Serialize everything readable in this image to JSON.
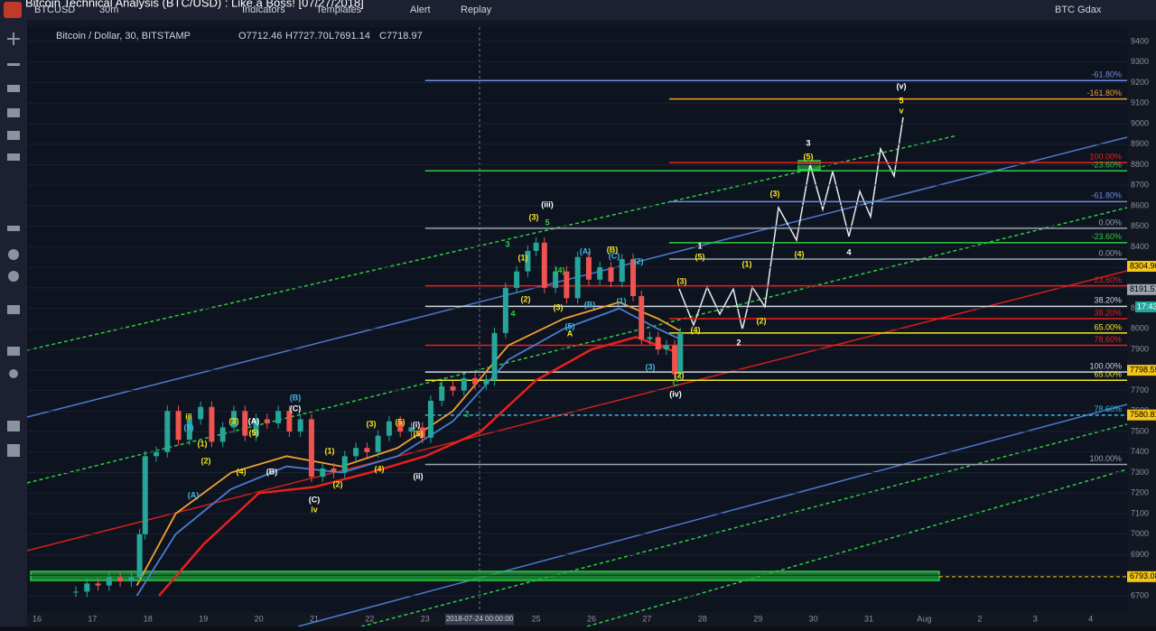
{
  "window_title": "Bitcoin Technical Analysis (BTC/USD) : Like a Boss! [07/27/2018]",
  "toolbar": {
    "symbol": "BTCUSD",
    "interval": "30m",
    "indicators": "Indicators",
    "templates": "Templates",
    "alert": "Alert",
    "replay": "Replay",
    "exchange": "BTC Gdax"
  },
  "legend": {
    "name": "Bitcoin / Dollar, 30, BITSTAMP",
    "open": "O7712.46",
    "high": "H7727.70",
    "low": "L7691.14",
    "close": "C7718.97"
  },
  "price_axis": {
    "ticks": [
      9400,
      9300,
      9200,
      9100,
      9000,
      8900,
      8800,
      8700,
      8600,
      8500,
      8400,
      8300,
      8200,
      8100,
      8000,
      7900,
      7800,
      7700,
      7600,
      7500,
      7400,
      7300,
      7200,
      7100,
      7000,
      6900,
      6800,
      6700
    ],
    "markers": [
      {
        "value": 8304.9,
        "label": "8304.90",
        "color": "#f5c518"
      },
      {
        "value": 8191.51,
        "label": "8191.51",
        "color": "#9aa4ad"
      },
      {
        "value": 7798.59,
        "label": "7798.59",
        "color": "#f5c518"
      },
      {
        "value": 7580.81,
        "label": "7580.81",
        "color": "#f5c518"
      },
      {
        "value": 6793.08,
        "label": "6793.08",
        "color": "#f5c518"
      }
    ],
    "countdown": "17:43"
  },
  "time_axis": {
    "ticks": [
      "16",
      "17",
      "18",
      "19",
      "20",
      "21",
      "22",
      "23",
      "24",
      "25",
      "26",
      "27",
      "28",
      "29",
      "30",
      "31",
      "Aug",
      "2",
      "3",
      "4"
    ],
    "cursor_label": "2018-07-24 00:00:00"
  },
  "price_series": {
    "x": [
      16.7,
      16.9,
      17.1,
      17.3,
      17.5,
      17.7,
      17.85,
      17.95,
      18.15,
      18.35,
      18.55,
      18.75,
      18.95,
      19.15,
      19.35,
      19.55,
      19.75,
      19.95,
      20.15,
      20.35,
      20.55,
      20.75,
      20.95,
      21.15,
      21.35,
      21.55,
      21.75,
      21.95,
      22.15,
      22.35,
      22.55,
      22.75,
      22.95,
      23.1,
      23.3,
      23.5,
      23.7,
      23.9,
      24.1,
      24.25,
      24.45,
      24.65,
      24.85,
      25.0,
      25.15,
      25.35,
      25.55,
      25.75,
      25.95,
      26.15,
      26.35,
      26.55,
      26.75,
      26.9,
      27.05,
      27.2,
      27.35,
      27.5,
      27.6
    ],
    "values": [
      6720,
      6760,
      6750,
      6790,
      6770,
      6790,
      7000,
      7380,
      7400,
      7600,
      7460,
      7560,
      7620,
      7450,
      7520,
      7600,
      7480,
      7560,
      7540,
      7600,
      7500,
      7560,
      7280,
      7320,
      7300,
      7380,
      7420,
      7400,
      7480,
      7550,
      7500,
      7520,
      7470,
      7650,
      7720,
      7700,
      7760,
      7730,
      7750,
      7980,
      8200,
      8280,
      8380,
      8420,
      8200,
      8280,
      8150,
      8350,
      8240,
      8300,
      8230,
      8340,
      8160,
      7950,
      7960,
      7900,
      7920,
      7780,
      7980
    ]
  },
  "moving_averages": [
    {
      "color": "#4a7bd0",
      "x": [
        17.8,
        18.5,
        19.5,
        20.5,
        21.5,
        22.5,
        23.5,
        24.5,
        25.5,
        26.5,
        27.2,
        27.6
      ],
      "values": [
        6700,
        7000,
        7220,
        7330,
        7300,
        7380,
        7550,
        7850,
        8000,
        8100,
        8000,
        7950
      ]
    },
    {
      "color": "#f0a030",
      "x": [
        17.8,
        18.5,
        19.5,
        20.5,
        21.5,
        22.5,
        23.5,
        24.5,
        25.5,
        26.5,
        27.2,
        27.6
      ],
      "values": [
        6750,
        7100,
        7300,
        7380,
        7330,
        7420,
        7600,
        7920,
        8050,
        8130,
        8050,
        7990
      ]
    },
    {
      "color": "#e8201c",
      "x": [
        18.2,
        19,
        20,
        21,
        22,
        23,
        24,
        25,
        26,
        26.8,
        27.6
      ],
      "values": [
        6700,
        6950,
        7200,
        7230,
        7300,
        7380,
        7500,
        7750,
        7900,
        7960,
        7880
      ]
    }
  ],
  "levels": [
    {
      "value": 9210,
      "label": "-61.80%",
      "color": "#6b8fe0",
      "start": 23
    },
    {
      "value": 9120,
      "label": "-161.80%",
      "color": "#f0a030",
      "start": 27.4
    },
    {
      "value": 8810,
      "label": "100.00%",
      "color": "#e8201c",
      "start": 27.4
    },
    {
      "value": 8770,
      "label": "-23.60%",
      "color": "#2ecc40",
      "start": 23
    },
    {
      "value": 8620,
      "label": "-61.80%",
      "color": "#6b8fe0",
      "start": 27.4
    },
    {
      "value": 8490,
      "label": "0.00%",
      "color": "#9aa4ad",
      "start": 23
    },
    {
      "value": 8420,
      "label": "-23.60%",
      "color": "#2ecc40",
      "start": 27.4
    },
    {
      "value": 8340,
      "label": "0.00%",
      "color": "#9aa4ad",
      "start": 27.4
    },
    {
      "value": 8210,
      "label": "23.60%",
      "color": "#e8201c",
      "start": 23
    },
    {
      "value": 8110,
      "label": "38.20%",
      "color": "#cfd6dc",
      "start": 23
    },
    {
      "value": 8050,
      "label": "38.20%",
      "color": "#e8201c",
      "start": 27.4
    },
    {
      "value": 7980,
      "label": "65.00%",
      "color": "#f5e625",
      "start": 27.4
    },
    {
      "value": 7920,
      "label": "78.60%",
      "color": "#e8201c",
      "start": 23
    },
    {
      "value": 7790,
      "label": "100.00%",
      "color": "#cfd6dc",
      "start": 23
    },
    {
      "value": 7750,
      "label": "65.00%",
      "color": "#f5e625",
      "start": 23
    },
    {
      "value": 7580,
      "label": "78.60%",
      "color": "#3fb8e0",
      "start": 23
    },
    {
      "value": 7340,
      "label": "100.00%",
      "color": "#9aa4ad",
      "start": 23
    }
  ],
  "waves": [
    "iii",
    "(5)",
    "(1)",
    "(2)",
    "(3)",
    "(4)",
    "(A)",
    "(A)",
    "(5)",
    "(B)",
    "(B)",
    "(C)",
    "(1)",
    "(2)",
    "(C)",
    "iv",
    "(3)",
    "(4)",
    "(5)",
    "(i)",
    "(5)",
    "(ii)",
    "1",
    "2",
    "3",
    "(1)",
    "(iii)",
    "(3)",
    "5",
    "(2)",
    "4",
    "(A)",
    "(B)",
    "(C)",
    "(2)",
    "(4)",
    "(5)",
    "(3)",
    "(B)",
    "(1)",
    "A",
    "(3)",
    "(iv)",
    "(2)",
    "C",
    "(4)",
    "(3)",
    "1",
    "(5)",
    "(1)",
    "(2)",
    "2",
    "(3)",
    "3",
    "(5)",
    "(4)",
    "4",
    "(v)",
    "5",
    "v"
  ]
}
